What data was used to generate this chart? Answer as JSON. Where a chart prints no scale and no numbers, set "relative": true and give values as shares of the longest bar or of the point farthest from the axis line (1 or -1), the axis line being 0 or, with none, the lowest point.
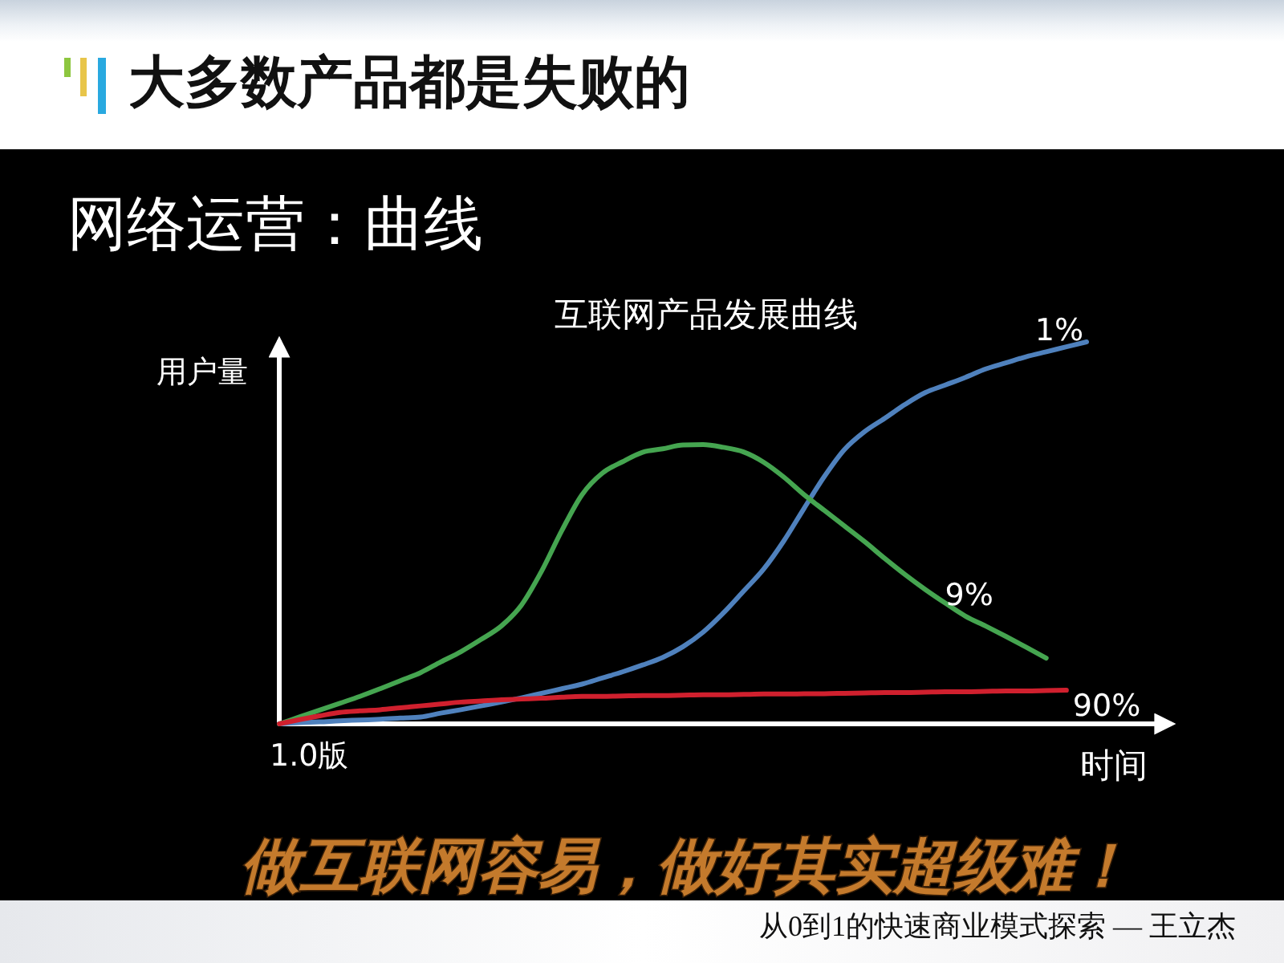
{
  "chart_data": {
    "type": "line",
    "title": "互联网产品发展曲线",
    "xlabel": "时间",
    "ylabel": "用户量",
    "relative": true,
    "categories": [
      null,
      null,
      null,
      null,
      null,
      null,
      null,
      null,
      null,
      null,
      null,
      null,
      null,
      null,
      null,
      null,
      null,
      null,
      null,
      null,
      null,
      null,
      null,
      null,
      null,
      null,
      null,
      null,
      null,
      null,
      null,
      null,
      null,
      null,
      null,
      null,
      null,
      null,
      null,
      null,
      null
    ],
    "series": [
      {
        "name": "1%",
        "color": "#4f81bd",
        "values": [
          0,
          0.003,
          0.005,
          0.008,
          0.01,
          0.012,
          0.015,
          0.018,
          0.028,
          0.037,
          0.047,
          0.057,
          0.068,
          0.08,
          0.092,
          0.104,
          0.12,
          0.136,
          0.154,
          0.174,
          0.202,
          0.24,
          0.29,
          0.347,
          0.405,
          0.479,
          0.564,
          0.647,
          0.718,
          0.765,
          0.8,
          0.836,
          0.867,
          0.887,
          0.907,
          0.929,
          0.945,
          0.961,
          0.974,
          0.987,
          1
        ]
      },
      {
        "name": "9%",
        "color": "#45a550",
        "values": [
          0,
          0.018,
          0.036,
          0.054,
          0.072,
          0.092,
          0.113,
          0.134,
          0.162,
          0.189,
          0.221,
          0.256,
          0.311,
          0.4,
          0.506,
          0.6,
          0.656,
          0.686,
          0.711,
          0.72,
          0.73,
          0.731,
          0.724,
          0.712,
          0.685,
          0.646,
          0.6,
          0.559,
          0.518,
          0.477,
          0.433,
          0.391,
          0.352,
          0.316,
          0.282,
          0.256,
          0.229,
          0.201,
          0.172,
          null,
          null
        ]
      },
      {
        "name": "90%",
        "color": "#d0202e",
        "values": [
          0,
          0.011,
          0.021,
          0.03,
          0.034,
          0.037,
          0.042,
          0.047,
          0.052,
          0.057,
          0.06,
          0.063,
          0.065,
          0.067,
          0.07,
          0.072,
          0.072,
          0.073,
          0.074,
          0.074,
          0.075,
          0.076,
          0.076,
          0.077,
          0.078,
          0.078,
          0.079,
          0.079,
          0.08,
          0.081,
          0.082,
          0.082,
          0.083,
          0.084,
          0.084,
          0.085,
          0.086,
          0.086,
          0.087,
          0.088,
          null
        ]
      }
    ],
    "annotations": [
      "大多数产品都是失败的",
      "网络运营：曲线",
      "1.0版",
      "做互联网容易，做好其实超级难！",
      "从0到1的快速商业模式探索 — 王立杰"
    ]
  }
}
